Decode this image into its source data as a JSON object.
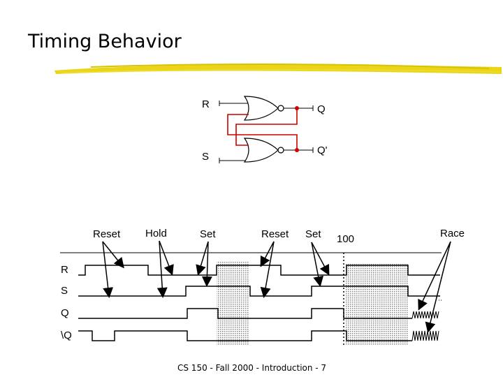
{
  "slide": {
    "title": "Timing Behavior",
    "footer": "CS 150 - Fall 2000 - Introduction - 7"
  },
  "circuit": {
    "input_r": "R",
    "input_s": "S",
    "output_q": "Q",
    "output_qbar": "Q'"
  },
  "timing": {
    "phase_labels": [
      "Reset",
      "Hold",
      "Set",
      "Reset",
      "Set",
      "100",
      "Race"
    ],
    "signal_labels": [
      "R",
      "S",
      "Q",
      "\\Q"
    ]
  },
  "colors": {
    "feedback_wire": "#cc0000",
    "underline": "#e8d000",
    "shading": "#c8c8c8"
  }
}
